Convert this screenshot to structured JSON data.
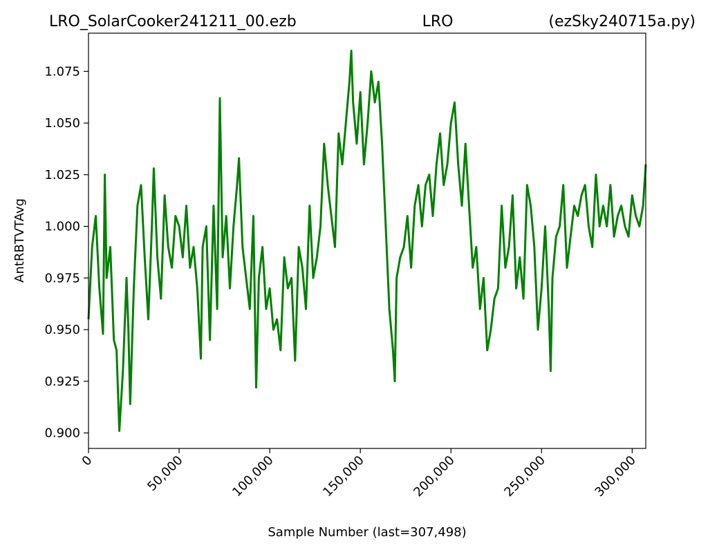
{
  "chart_data": {
    "type": "line",
    "title_parts": [
      "LRO_SolarCooker241211_00.ezb",
      "LRO",
      "(ezSky240715a.py)"
    ],
    "xlabel": "Sample Number (last=307,498)",
    "ylabel": "AntRBTVTAvg",
    "xlim": [
      0,
      307498
    ],
    "ylim": [
      0.8925,
      1.0935
    ],
    "x_ticks": [
      0,
      50000,
      100000,
      150000,
      200000,
      250000,
      300000
    ],
    "x_tick_labels": [
      "0",
      "50,000",
      "100,000",
      "150,000",
      "200,000",
      "250,000",
      "300,000"
    ],
    "y_ticks": [
      0.9,
      0.925,
      0.95,
      0.975,
      1.0,
      1.025,
      1.05,
      1.075
    ],
    "y_tick_labels": [
      "0.900",
      "0.925",
      "0.950",
      "0.975",
      "1.000",
      "1.025",
      "1.050",
      "1.075"
    ],
    "grid": false,
    "series": [
      {
        "color": "#008000",
        "x": [
          0,
          2000,
          4000,
          6000,
          8000,
          9000,
          10000,
          12000,
          14000,
          15500,
          17000,
          19000,
          21000,
          22000,
          23000,
          25000,
          27000,
          29000,
          31000,
          33000,
          35000,
          36000,
          38000,
          40000,
          42000,
          44000,
          46000,
          48000,
          50000,
          52000,
          54000,
          56000,
          58000,
          60000,
          62000,
          63000,
          65000,
          67000,
          69000,
          71000,
          72500,
          74000,
          76000,
          78000,
          80000,
          82000,
          83000,
          85000,
          87000,
          89000,
          91000,
          92500,
          94000,
          96000,
          98000,
          100000,
          102000,
          104000,
          106000,
          108000,
          110000,
          112000,
          114000,
          116000,
          118000,
          120000,
          122000,
          124000,
          126000,
          128000,
          130000,
          132000,
          134000,
          136000,
          138000,
          140000,
          142000,
          144000,
          145000,
          146000,
          148000,
          150000,
          152000,
          154000,
          156000,
          158000,
          160000,
          162000,
          164000,
          166000,
          168000,
          169000,
          170000,
          172000,
          174000,
          176000,
          178000,
          180000,
          182000,
          184000,
          186000,
          188000,
          190000,
          192000,
          194000,
          196000,
          198000,
          200000,
          202000,
          204000,
          206000,
          208000,
          210000,
          212000,
          214000,
          216000,
          218000,
          220000,
          222000,
          224000,
          226000,
          228000,
          230000,
          232000,
          234000,
          236000,
          238000,
          240000,
          242000,
          244000,
          246000,
          248000,
          250000,
          252000,
          254000,
          255000,
          256000,
          258000,
          260000,
          262000,
          264000,
          266000,
          268000,
          270000,
          272000,
          274000,
          276000,
          278000,
          280000,
          282000,
          284000,
          286000,
          288000,
          290000,
          292000,
          294000,
          296000,
          298000,
          300000,
          302000,
          304000,
          306000,
          307498
        ],
        "y": [
          0.955,
          0.99,
          1.005,
          0.97,
          0.948,
          1.025,
          0.975,
          0.99,
          0.945,
          0.94,
          0.901,
          0.93,
          0.975,
          0.95,
          0.914,
          0.97,
          1.01,
          1.02,
          0.985,
          0.955,
          1.0,
          1.028,
          0.985,
          0.965,
          1.015,
          0.99,
          0.98,
          1.005,
          1.0,
          0.985,
          1.01,
          0.98,
          0.99,
          0.97,
          0.936,
          0.99,
          1.0,
          0.945,
          1.01,
          0.96,
          1.062,
          0.985,
          1.005,
          0.97,
          1.0,
          1.02,
          1.033,
          0.99,
          0.975,
          0.96,
          1.005,
          0.922,
          0.975,
          0.99,
          0.96,
          0.97,
          0.95,
          0.955,
          0.94,
          0.985,
          0.97,
          0.975,
          0.935,
          0.99,
          0.98,
          0.96,
          1.01,
          0.975,
          0.985,
          1.0,
          1.04,
          1.02,
          1.005,
          0.99,
          1.045,
          1.03,
          1.05,
          1.07,
          1.085,
          1.06,
          1.04,
          1.065,
          1.03,
          1.05,
          1.075,
          1.06,
          1.07,
          1.04,
          1.0,
          0.96,
          0.94,
          0.925,
          0.975,
          0.985,
          0.99,
          1.005,
          0.98,
          1.01,
          1.02,
          1.0,
          1.02,
          1.025,
          1.005,
          1.03,
          1.045,
          1.02,
          1.03,
          1.05,
          1.06,
          1.03,
          1.01,
          1.04,
          1.01,
          0.98,
          0.99,
          0.96,
          0.975,
          0.94,
          0.95,
          0.965,
          0.97,
          1.01,
          0.98,
          0.99,
          1.015,
          0.97,
          0.985,
          0.965,
          1.02,
          1.01,
          0.99,
          0.95,
          0.97,
          1.0,
          0.96,
          0.93,
          0.975,
          0.995,
          1.0,
          1.02,
          0.98,
          0.995,
          1.01,
          1.005,
          1.015,
          1.02,
          1.0,
          0.99,
          1.025,
          1.0,
          1.01,
          1.0,
          1.02,
          0.995,
          1.005,
          1.01,
          1.0,
          0.995,
          1.015,
          1.005,
          1.0,
          1.01,
          1.03
        ]
      }
    ]
  }
}
